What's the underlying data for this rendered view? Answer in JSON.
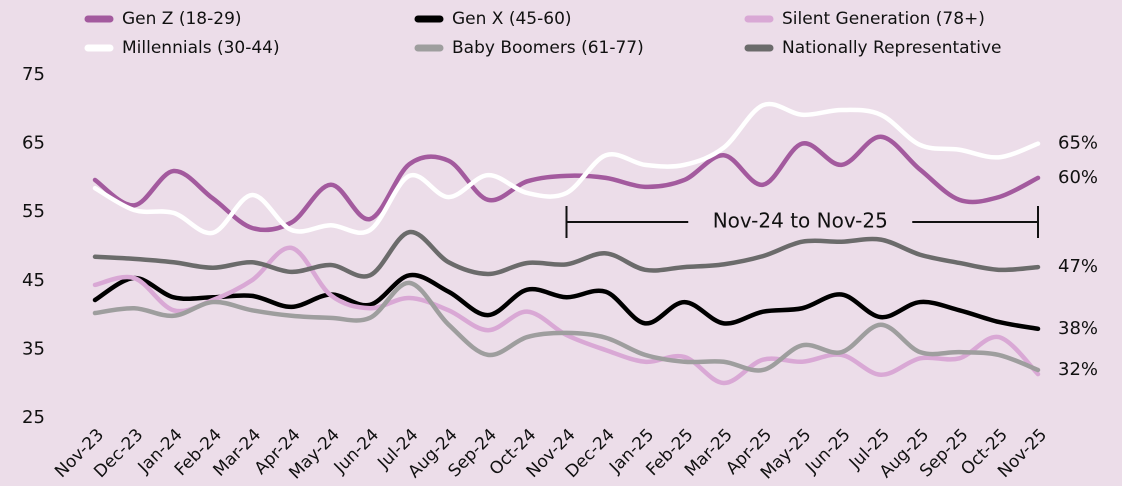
{
  "chart_data": {
    "type": "line",
    "categories": [
      "Nov-23",
      "Dec-23",
      "Jan-24",
      "Feb-24",
      "Mar-24",
      "Apr-24",
      "May-24",
      "Jun-24",
      "Jul-24",
      "Aug-24",
      "Sep-24",
      "Oct-24",
      "Nov-24",
      "Dec-24",
      "Jan-25",
      "Feb-25",
      "Mar-25",
      "Apr-25",
      "May-25",
      "Jun-25",
      "Jul-25",
      "Aug-25",
      "Sep-25",
      "Oct-25",
      "Nov-25"
    ],
    "ylim": [
      25,
      75
    ],
    "yticks": [
      25,
      35,
      45,
      55,
      65,
      75
    ],
    "annotation": "Nov-24 to Nov-25",
    "series": [
      {
        "name": "Gen Z (18-29)",
        "color": "#a35a9e",
        "values": [
          59.7,
          56,
          61,
          57,
          52.7,
          53.5,
          59,
          54,
          62,
          62.5,
          56.8,
          59.5,
          60.3,
          60,
          58.7,
          59.7,
          63.3,
          59,
          65,
          61.9,
          66,
          61.2,
          56.8,
          57.2,
          60
        ],
        "value_labels": [
          null,
          null,
          null,
          null,
          null,
          null,
          null,
          null,
          null,
          null,
          null,
          null,
          null,
          null,
          null,
          null,
          null,
          null,
          null,
          null,
          null,
          null,
          null,
          null,
          "60%"
        ]
      },
      {
        "name": "Millennials (30-44)",
        "color": "#ffffff",
        "values": [
          58.5,
          55.3,
          54.9,
          52,
          57.5,
          52.4,
          53.1,
          52.4,
          60.3,
          57.2,
          60.4,
          57.8,
          57.8,
          63.3,
          61.9,
          61.9,
          64.4,
          70.6,
          69.2,
          69.9,
          69.2,
          64.8,
          64.1,
          63,
          65
        ],
        "value_labels": [
          null,
          null,
          null,
          null,
          null,
          null,
          null,
          null,
          null,
          null,
          null,
          null,
          null,
          null,
          null,
          null,
          null,
          null,
          null,
          null,
          null,
          null,
          null,
          null,
          "65%"
        ]
      },
      {
        "name": "Gen X (45-60)",
        "color": "#000000",
        "values": [
          42.2,
          45.4,
          42.6,
          42.6,
          42.8,
          41.2,
          43,
          41.5,
          45.8,
          43.4,
          40,
          43.7,
          42.6,
          43.4,
          38.8,
          41.9,
          38.8,
          40.5,
          41,
          43,
          39.7,
          41.9,
          40.7,
          39,
          38
        ],
        "value_labels": [
          null,
          null,
          null,
          null,
          null,
          null,
          null,
          null,
          null,
          null,
          null,
          null,
          null,
          null,
          null,
          null,
          null,
          null,
          null,
          null,
          null,
          null,
          null,
          null,
          "38%"
        ]
      },
      {
        "name": "Baby Boomers (61-77)",
        "color": "#9e9e9e",
        "values": [
          40.3,
          41,
          39.9,
          41.9,
          40.7,
          39.9,
          39.6,
          39.6,
          44.7,
          38.6,
          34.2,
          36.8,
          37.4,
          36.7,
          34.2,
          33.2,
          33.2,
          32,
          35.6,
          34.6,
          38.6,
          34.6,
          34.6,
          34.2,
          32
        ],
        "value_labels": [
          null,
          null,
          null,
          null,
          null,
          null,
          null,
          null,
          null,
          null,
          null,
          null,
          null,
          null,
          null,
          null,
          null,
          null,
          null,
          null,
          null,
          null,
          null,
          null,
          "32%"
        ]
      },
      {
        "name": "Silent Generation (78+)",
        "color": "#d9a8d5",
        "values": [
          44.4,
          45.4,
          40.7,
          42.2,
          45.1,
          49.8,
          42.9,
          41,
          42.5,
          40.7,
          37.8,
          40.5,
          37.1,
          34.9,
          33.2,
          33.9,
          30.1,
          33.5,
          33.2,
          34.2,
          31.3,
          33.7,
          33.7,
          36.8,
          31.4
        ]
      },
      {
        "name": "Nationally Representative",
        "color": "#6b6b6b",
        "values": [
          48.5,
          48.2,
          47.7,
          46.9,
          47.7,
          46.3,
          47.3,
          45.8,
          52.1,
          47.7,
          46,
          47.6,
          47.4,
          49,
          46.6,
          47,
          47.4,
          48.6,
          50.7,
          50.7,
          51,
          48.8,
          47.6,
          46.6,
          47
        ],
        "value_labels": [
          null,
          null,
          null,
          null,
          null,
          null,
          null,
          null,
          null,
          null,
          null,
          null,
          null,
          null,
          null,
          null,
          null,
          null,
          null,
          null,
          null,
          null,
          null,
          null,
          "47%"
        ]
      }
    ]
  }
}
